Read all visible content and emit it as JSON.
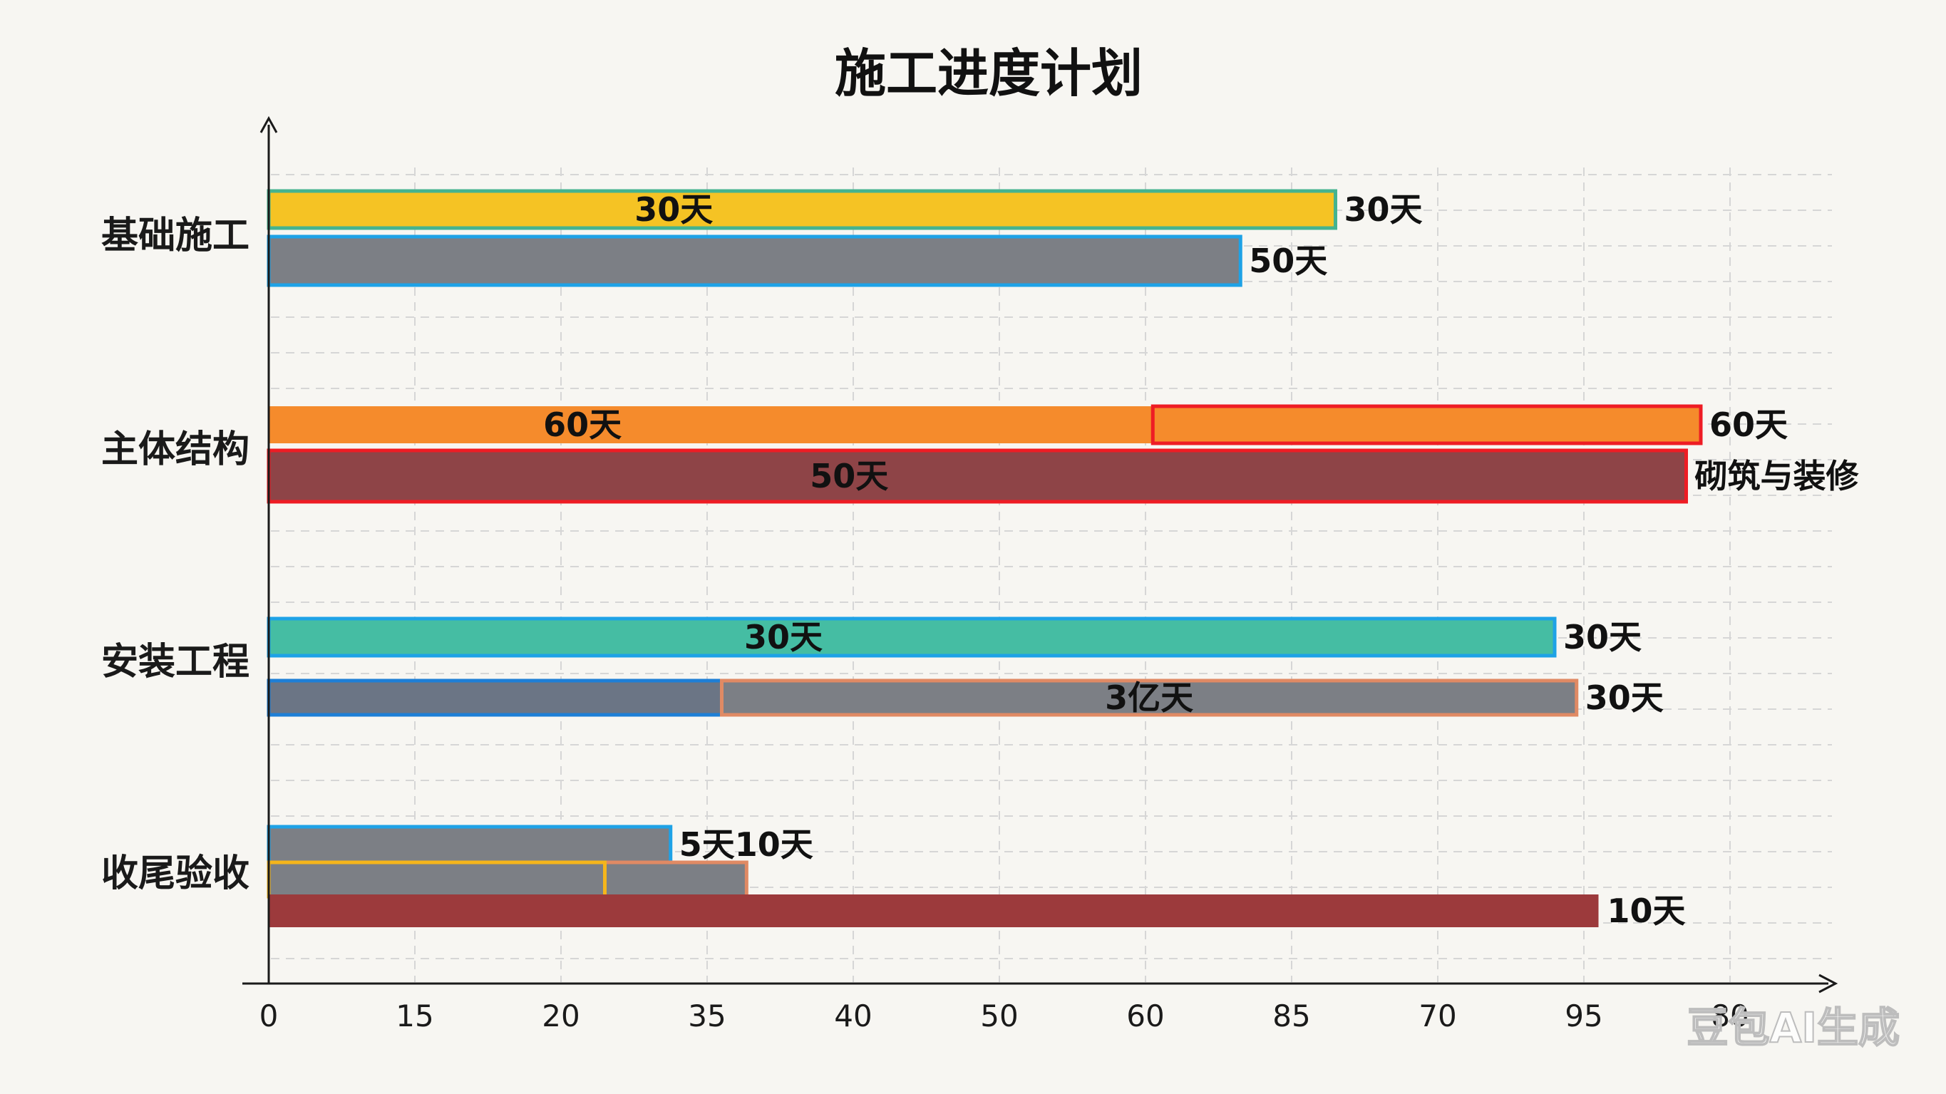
{
  "chart_data": {
    "type": "bar",
    "title": "施工进度计划",
    "xlabel": "",
    "ylabel": "",
    "x_tick_labels": [
      "0",
      "15",
      "20",
      "35",
      "40",
      "50",
      "60",
      "85",
      "70",
      "95",
      "80"
    ],
    "categories": [
      "基础施工",
      "主体结构",
      "安装工程",
      "收尾验收"
    ],
    "grid": true,
    "bars": [
      {
        "category": "基础施工",
        "row": 0,
        "start": 0,
        "end": 7.3,
        "color": "#f5c324",
        "edge": "#45b38f",
        "inner_label": "30天",
        "end_label": "30天"
      },
      {
        "category": "基础施工",
        "row": 1,
        "start": 0,
        "end": 6.65,
        "color": "#7c7f85",
        "edge": "#1ea2e6",
        "end_label": "50天"
      },
      {
        "category": "主体结构",
        "row": 0,
        "start": 0,
        "end": 6.05,
        "color": "#f58b2c",
        "edge": "none",
        "inner_label": "60天"
      },
      {
        "category": "主体结构",
        "row": 0,
        "start": 6.05,
        "end": 9.8,
        "color": "#f58b2c",
        "edge": "#ee1c24",
        "end_label": "60天"
      },
      {
        "category": "主体结构",
        "row": 1,
        "start": 0,
        "end": 9.7,
        "color": "#8e4447",
        "edge": "#ee1c24",
        "inner_label": "50天",
        "end_label": "砌筑与装修"
      },
      {
        "category": "安装工程",
        "row": 0,
        "start": 0,
        "end": 8.8,
        "color": "#45bda3",
        "edge": "#1ea2e6",
        "inner_label": "30天",
        "end_label": "30天"
      },
      {
        "category": "安装工程",
        "row": 1,
        "start": 0,
        "end": 3.1,
        "color": "#6b7585",
        "edge": "#1e7fd6"
      },
      {
        "category": "安装工程",
        "row": 1,
        "start": 3.1,
        "end": 8.95,
        "color": "#7c7f85",
        "edge": "#e08a64",
        "inner_label": "3亿天",
        "end_label": "30天"
      },
      {
        "category": "收尾验收",
        "row": 0,
        "start": 0,
        "end": 2.75,
        "color": "#7c7f85",
        "edge": "#1ea2e6",
        "end_label": "5天10天"
      },
      {
        "category": "收尾验收",
        "row": 1,
        "start": 0,
        "end": 3.27,
        "color": "#7c7f85",
        "edge": "#e08a64"
      },
      {
        "category": "收尾验收",
        "row": 1,
        "start": 0,
        "end": 2.3,
        "color": "#7c7f85",
        "edge": "#f5b51b"
      },
      {
        "category": "收尾验收",
        "row": 2,
        "start": 0,
        "end": 9.1,
        "color": "#9c3a3c",
        "edge": "none",
        "end_label": "10天"
      }
    ]
  },
  "watermark": "豆包AI生成"
}
